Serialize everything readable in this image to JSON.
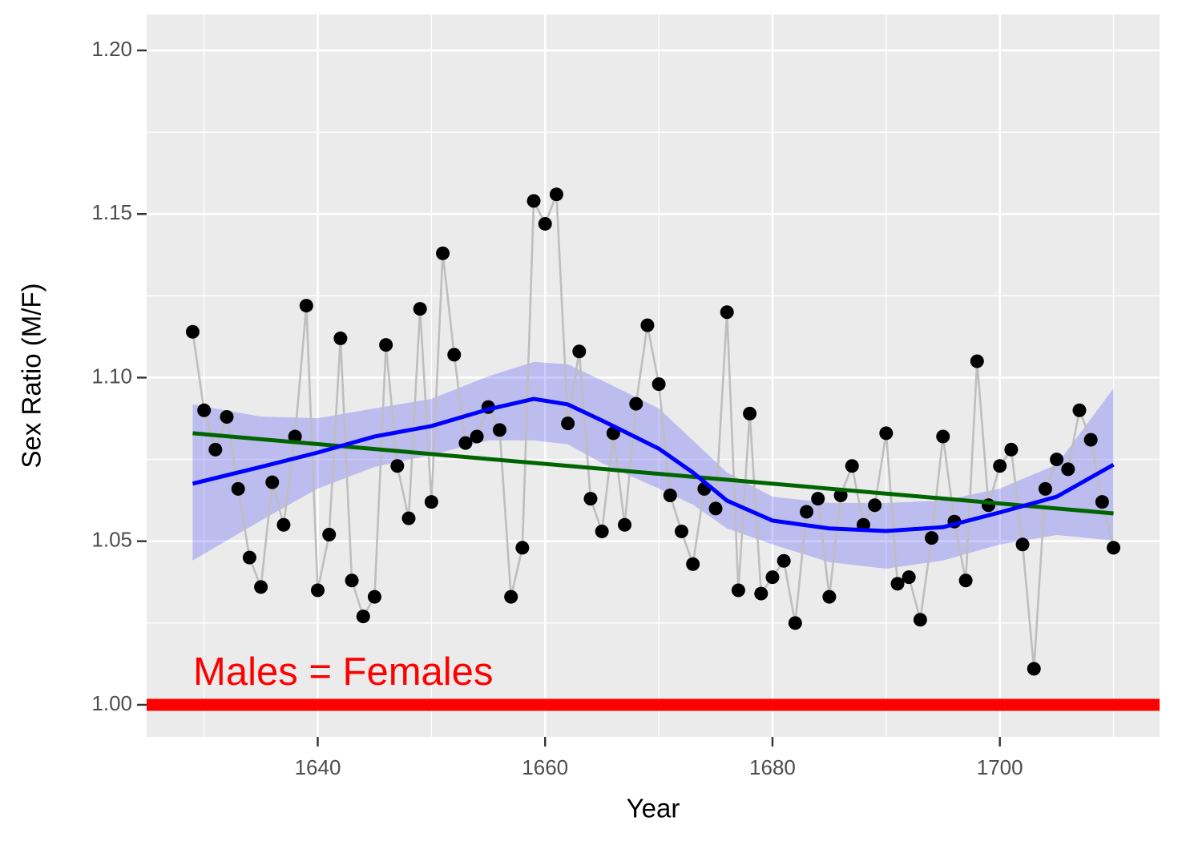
{
  "chart_data": {
    "type": "line",
    "x_label": "Year",
    "y_label": "Sex Ratio (M/F)",
    "annotation": "Males = Females",
    "annotation_color": "#ff0000",
    "background": "#ebebeb",
    "grid": true,
    "xlim": [
      1624.95,
      1714.05
    ],
    "ylim": [
      0.9902,
      1.211
    ],
    "xticks": [
      1640,
      1660,
      1680,
      1700
    ],
    "yticks": [
      {
        "value": 1,
        "label": "1.00"
      },
      1.05,
      {
        "value": 1.1,
        "label": "1.10"
      },
      1.15,
      {
        "value": 1.2,
        "label": "1.20"
      }
    ],
    "xminorticks": [
      1630,
      1650,
      1670,
      1690,
      1710
    ],
    "yminorticks": [
      1.025,
      1.075,
      1.125,
      1.175
    ],
    "x": [
      1629,
      1630,
      1631,
      1632,
      1633,
      1634,
      1635,
      1636,
      1637,
      1638,
      1639,
      1640,
      1641,
      1642,
      1643,
      1644,
      1645,
      1646,
      1647,
      1648,
      1649,
      1650,
      1651,
      1652,
      1653,
      1654,
      1655,
      1656,
      1657,
      1658,
      1659,
      1660,
      1661,
      1662,
      1663,
      1664,
      1665,
      1666,
      1667,
      1668,
      1669,
      1670,
      1671,
      1672,
      1673,
      1674,
      1675,
      1676,
      1677,
      1678,
      1679,
      1680,
      1681,
      1682,
      1683,
      1684,
      1685,
      1686,
      1687,
      1688,
      1689,
      1690,
      1691,
      1692,
      1693,
      1694,
      1695,
      1696,
      1697,
      1698,
      1699,
      1700,
      1701,
      1702,
      1703,
      1704,
      1705,
      1706,
      1707,
      1708,
      1709,
      1710
    ],
    "series": [
      {
        "color": "#000000",
        "line_color": "#bebebe",
        "values": [
          1.114,
          1.09,
          1.078,
          1.088,
          1.066,
          1.045,
          1.036,
          1.068,
          1.055,
          1.082,
          1.122,
          1.035,
          1.052,
          1.112,
          1.038,
          1.027,
          1.033,
          1.11,
          1.073,
          1.057,
          1.121,
          1.062,
          1.138,
          1.107,
          1.08,
          1.082,
          1.091,
          1.084,
          1.033,
          1.048,
          1.154,
          1.147,
          1.156,
          1.086,
          1.108,
          1.063,
          1.053,
          1.083,
          1.055,
          1.092,
          1.116,
          1.098,
          1.064,
          1.053,
          1.043,
          1.066,
          1.06,
          1.12,
          1.035,
          1.089,
          1.034,
          1.039,
          1.044,
          1.025,
          1.059,
          1.063,
          1.033,
          1.064,
          1.073,
          1.055,
          1.061,
          1.083,
          1.037,
          1.039,
          1.026,
          1.051,
          1.082,
          1.056,
          1.038,
          1.105,
          1.061,
          1.073,
          1.078,
          1.049,
          1.011,
          1.066,
          1.075,
          1.072,
          1.09,
          1.081,
          1.062,
          1.048
        ]
      }
    ],
    "smooth": {
      "color": "#0000ff",
      "fill": "#0000ff",
      "x": [
        1629,
        1635,
        1640,
        1645,
        1650,
        1655,
        1659,
        1662,
        1665,
        1670,
        1673,
        1676,
        1680,
        1685,
        1690,
        1695,
        1700,
        1705,
        1710
      ],
      "values": [
        1.0676,
        1.0727,
        1.0771,
        1.082,
        1.0852,
        1.0903,
        1.0935,
        1.0918,
        1.0869,
        1.0783,
        1.071,
        1.0624,
        1.0563,
        1.0539,
        1.0531,
        1.0543,
        1.0588,
        1.0636,
        1.0734
      ],
      "upper": [
        1.0918,
        1.0881,
        1.0876,
        1.0906,
        1.0935,
        1.1004,
        1.1048,
        1.1041,
        1.0991,
        1.0906,
        1.0808,
        1.071,
        1.0636,
        1.0617,
        1.0617,
        1.0624,
        1.0661,
        1.0734,
        1.0967
      ],
      "lower": [
        1.0441,
        1.0563,
        1.0661,
        1.0727,
        1.0764,
        1.0808,
        1.0808,
        1.0796,
        1.0739,
        1.0661,
        1.0612,
        1.0539,
        1.049,
        1.0436,
        1.0416,
        1.0441,
        1.049,
        1.0519,
        1.0502
      ]
    },
    "trend": {
      "color": "#006400",
      "x": [
        1629,
        1710
      ],
      "values": [
        1.083,
        1.0585
      ]
    },
    "hline": {
      "value": 1,
      "color": "#ff0000"
    }
  }
}
